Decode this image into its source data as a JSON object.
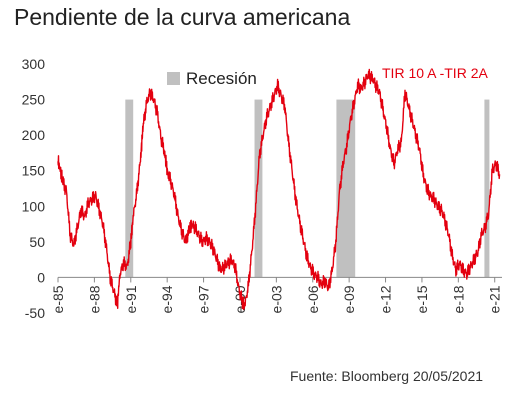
{
  "title": "Pendiente de la curva americana",
  "source": "Fuente: Bloomberg 20/05/2021",
  "colors": {
    "line": "#e3000f",
    "recession": "#c0c0c0",
    "axis": "#888888",
    "text": "#333333"
  },
  "chart_data": {
    "type": "line",
    "title": "Pendiente de la curva americana",
    "xlabel": "",
    "ylabel": "",
    "ylim": [
      -50,
      300
    ],
    "xlim": [
      1985.0,
      2021.6
    ],
    "grid": false,
    "y_ticks": [
      -50,
      0,
      50,
      100,
      150,
      200,
      250,
      300
    ],
    "y_tick_labels": [
      "-50",
      "0",
      "50",
      "100",
      "150",
      "200",
      "250",
      "300"
    ],
    "x_ticks": [
      1985,
      1988,
      1991,
      1994,
      1997,
      2000,
      2003,
      2006,
      2009,
      2012,
      2015,
      2018,
      2021
    ],
    "x_tick_labels": [
      "e-85",
      "e-88",
      "e-91",
      "e-94",
      "e-97",
      "e-00",
      "e-03",
      "e-06",
      "e-09",
      "e-12",
      "e-15",
      "e-18",
      "e-21"
    ],
    "legend": {
      "position": "top-left",
      "label": "Recesión"
    },
    "series": [
      {
        "name": "TIR 10 A -TIR 2A",
        "x": [
          1985.0,
          1985.2,
          1985.4,
          1985.7,
          1986.0,
          1986.3,
          1986.6,
          1986.9,
          1987.2,
          1987.5,
          1987.8,
          1988.1,
          1988.4,
          1988.7,
          1989.0,
          1989.3,
          1989.6,
          1989.9,
          1990.1,
          1990.4,
          1990.7,
          1991.0,
          1991.2,
          1991.5,
          1991.8,
          1992.0,
          1992.3,
          1992.6,
          1992.9,
          1993.2,
          1993.5,
          1993.8,
          1994.0,
          1994.3,
          1994.6,
          1994.9,
          1995.2,
          1995.5,
          1995.8,
          1996.0,
          1996.3,
          1996.6,
          1996.9,
          1997.2,
          1997.5,
          1997.8,
          1998.1,
          1998.4,
          1998.7,
          1999.0,
          1999.3,
          1999.6,
          1999.9,
          2000.2,
          2000.4,
          2000.7,
          2001.0,
          2001.3,
          2001.6,
          2001.9,
          2002.2,
          2002.5,
          2002.8,
          2003.1,
          2003.4,
          2003.7,
          2004.0,
          2004.3,
          2004.6,
          2004.9,
          2005.2,
          2005.5,
          2005.8,
          2006.1,
          2006.4,
          2006.7,
          2007.0,
          2007.3,
          2007.6,
          2007.9,
          2008.2,
          2008.5,
          2008.8,
          2009.1,
          2009.4,
          2009.7,
          2010.0,
          2010.3,
          2010.6,
          2010.9,
          2011.2,
          2011.5,
          2011.8,
          2012.1,
          2012.4,
          2012.7,
          2013.0,
          2013.3,
          2013.6,
          2013.9,
          2014.2,
          2014.5,
          2014.8,
          2015.1,
          2015.4,
          2015.7,
          2016.0,
          2016.3,
          2016.6,
          2016.9,
          2017.2,
          2017.5,
          2017.8,
          2018.1,
          2018.4,
          2018.7,
          2019.0,
          2019.3,
          2019.6,
          2019.9,
          2020.2,
          2020.5,
          2020.8,
          2021.1,
          2021.4
        ],
        "values": [
          165,
          150,
          135,
          120,
          60,
          45,
          70,
          95,
          85,
          105,
          110,
          115,
          95,
          75,
          40,
          0,
          -20,
          -38,
          5,
          20,
          15,
          50,
          85,
          120,
          165,
          210,
          245,
          260,
          250,
          230,
          195,
          175,
          150,
          135,
          115,
          85,
          65,
          50,
          65,
          75,
          70,
          60,
          50,
          55,
          50,
          40,
          25,
          10,
          15,
          20,
          25,
          15,
          -15,
          -35,
          -40,
          -10,
          40,
          100,
          170,
          200,
          225,
          240,
          255,
          270,
          255,
          240,
          190,
          150,
          110,
          80,
          55,
          30,
          15,
          5,
          0,
          -10,
          -5,
          -15,
          10,
          50,
          120,
          160,
          185,
          220,
          245,
          270,
          265,
          275,
          285,
          280,
          270,
          260,
          235,
          210,
          180,
          160,
          180,
          190,
          260,
          240,
          220,
          200,
          180,
          145,
          125,
          115,
          110,
          100,
          95,
          80,
          60,
          30,
          10,
          20,
          10,
          5,
          15,
          25,
          35,
          60,
          70,
          90,
          150,
          160,
          145
        ],
        "color": "#e3000f"
      }
    ],
    "recessions": [
      {
        "start": 1990.55,
        "end": 1991.2
      },
      {
        "start": 2001.2,
        "end": 2001.85
      },
      {
        "start": 2007.95,
        "end": 2009.5
      },
      {
        "start": 2020.15,
        "end": 2020.5
      }
    ]
  }
}
